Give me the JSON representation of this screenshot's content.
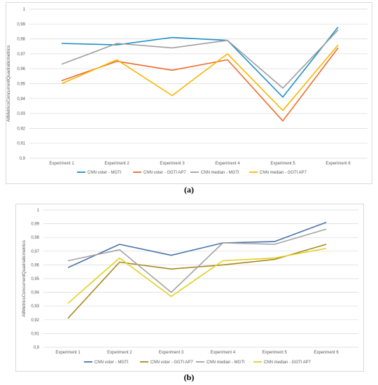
{
  "chart_data": [
    {
      "panel": "(a)",
      "type": "line",
      "title": "",
      "xlabel": "",
      "ylabel": "AllMetricsConcurrentQuadraticmetrics",
      "categories": [
        "Experiment 1",
        "Experiment 2",
        "Experiment 3",
        "Experiment 4",
        "Experiment 5",
        "Experiment 6"
      ],
      "ylim": [
        0.9,
        1.0
      ],
      "yticks": [
        "0,9",
        "0,91",
        "0,92",
        "0,93",
        "0,94",
        "0,95",
        "0,96",
        "0,97",
        "0,98",
        "0,99",
        "1"
      ],
      "grid": true,
      "legend_position": "bottom",
      "series": [
        {
          "name": "CNN voter - MGTI",
          "color": "#1f8fc7",
          "values": [
            0.977,
            0.976,
            0.981,
            0.979,
            0.941,
            0.988
          ]
        },
        {
          "name": "CNN voter - GGTI AP7",
          "color": "#ef6a2a",
          "values": [
            0.952,
            0.965,
            0.959,
            0.966,
            0.925,
            0.974
          ]
        },
        {
          "name": "CNN median - MGTI",
          "color": "#9e9e9e",
          "values": [
            0.963,
            0.977,
            0.974,
            0.979,
            0.947,
            0.986
          ]
        },
        {
          "name": "CNN median - GGTI AP7",
          "color": "#f6b700",
          "values": [
            0.95,
            0.966,
            0.942,
            0.97,
            0.932,
            0.976
          ]
        }
      ]
    },
    {
      "panel": "(b)",
      "type": "line",
      "title": "",
      "xlabel": "",
      "ylabel": "AllMetricsConcurrentQuadraticmetrics",
      "categories": [
        "Experiment 1",
        "Experiment 2",
        "Experiment 3",
        "Experiment 4",
        "Experiment 5",
        "Experiment 6"
      ],
      "ylim": [
        0.9,
        1.0
      ],
      "yticks": [
        "0,9",
        "0,91",
        "0,92",
        "0,93",
        "0,94",
        "0,95",
        "0,96",
        "0,97",
        "0,98",
        "0,99",
        "1"
      ],
      "grid": true,
      "legend_position": "bottom",
      "series": [
        {
          "name": "CNN voter - MGTI",
          "color": "#4a72b0",
          "values": [
            0.958,
            0.975,
            0.967,
            0.976,
            0.977,
            0.991
          ]
        },
        {
          "name": "CNN voter - GGTI AP7",
          "color": "#a8891e",
          "values": [
            0.921,
            0.962,
            0.957,
            0.96,
            0.964,
            0.975
          ]
        },
        {
          "name": "CNN median - MGTI",
          "color": "#a3a3a3",
          "values": [
            0.963,
            0.971,
            0.94,
            0.976,
            0.975,
            0.986
          ]
        },
        {
          "name": "CNN median - GGTI AP7",
          "color": "#e2cf1f",
          "values": [
            0.932,
            0.965,
            0.937,
            0.963,
            0.965,
            0.972
          ]
        }
      ]
    }
  ],
  "captions": {
    "a": "(a)",
    "b": "(b)"
  }
}
